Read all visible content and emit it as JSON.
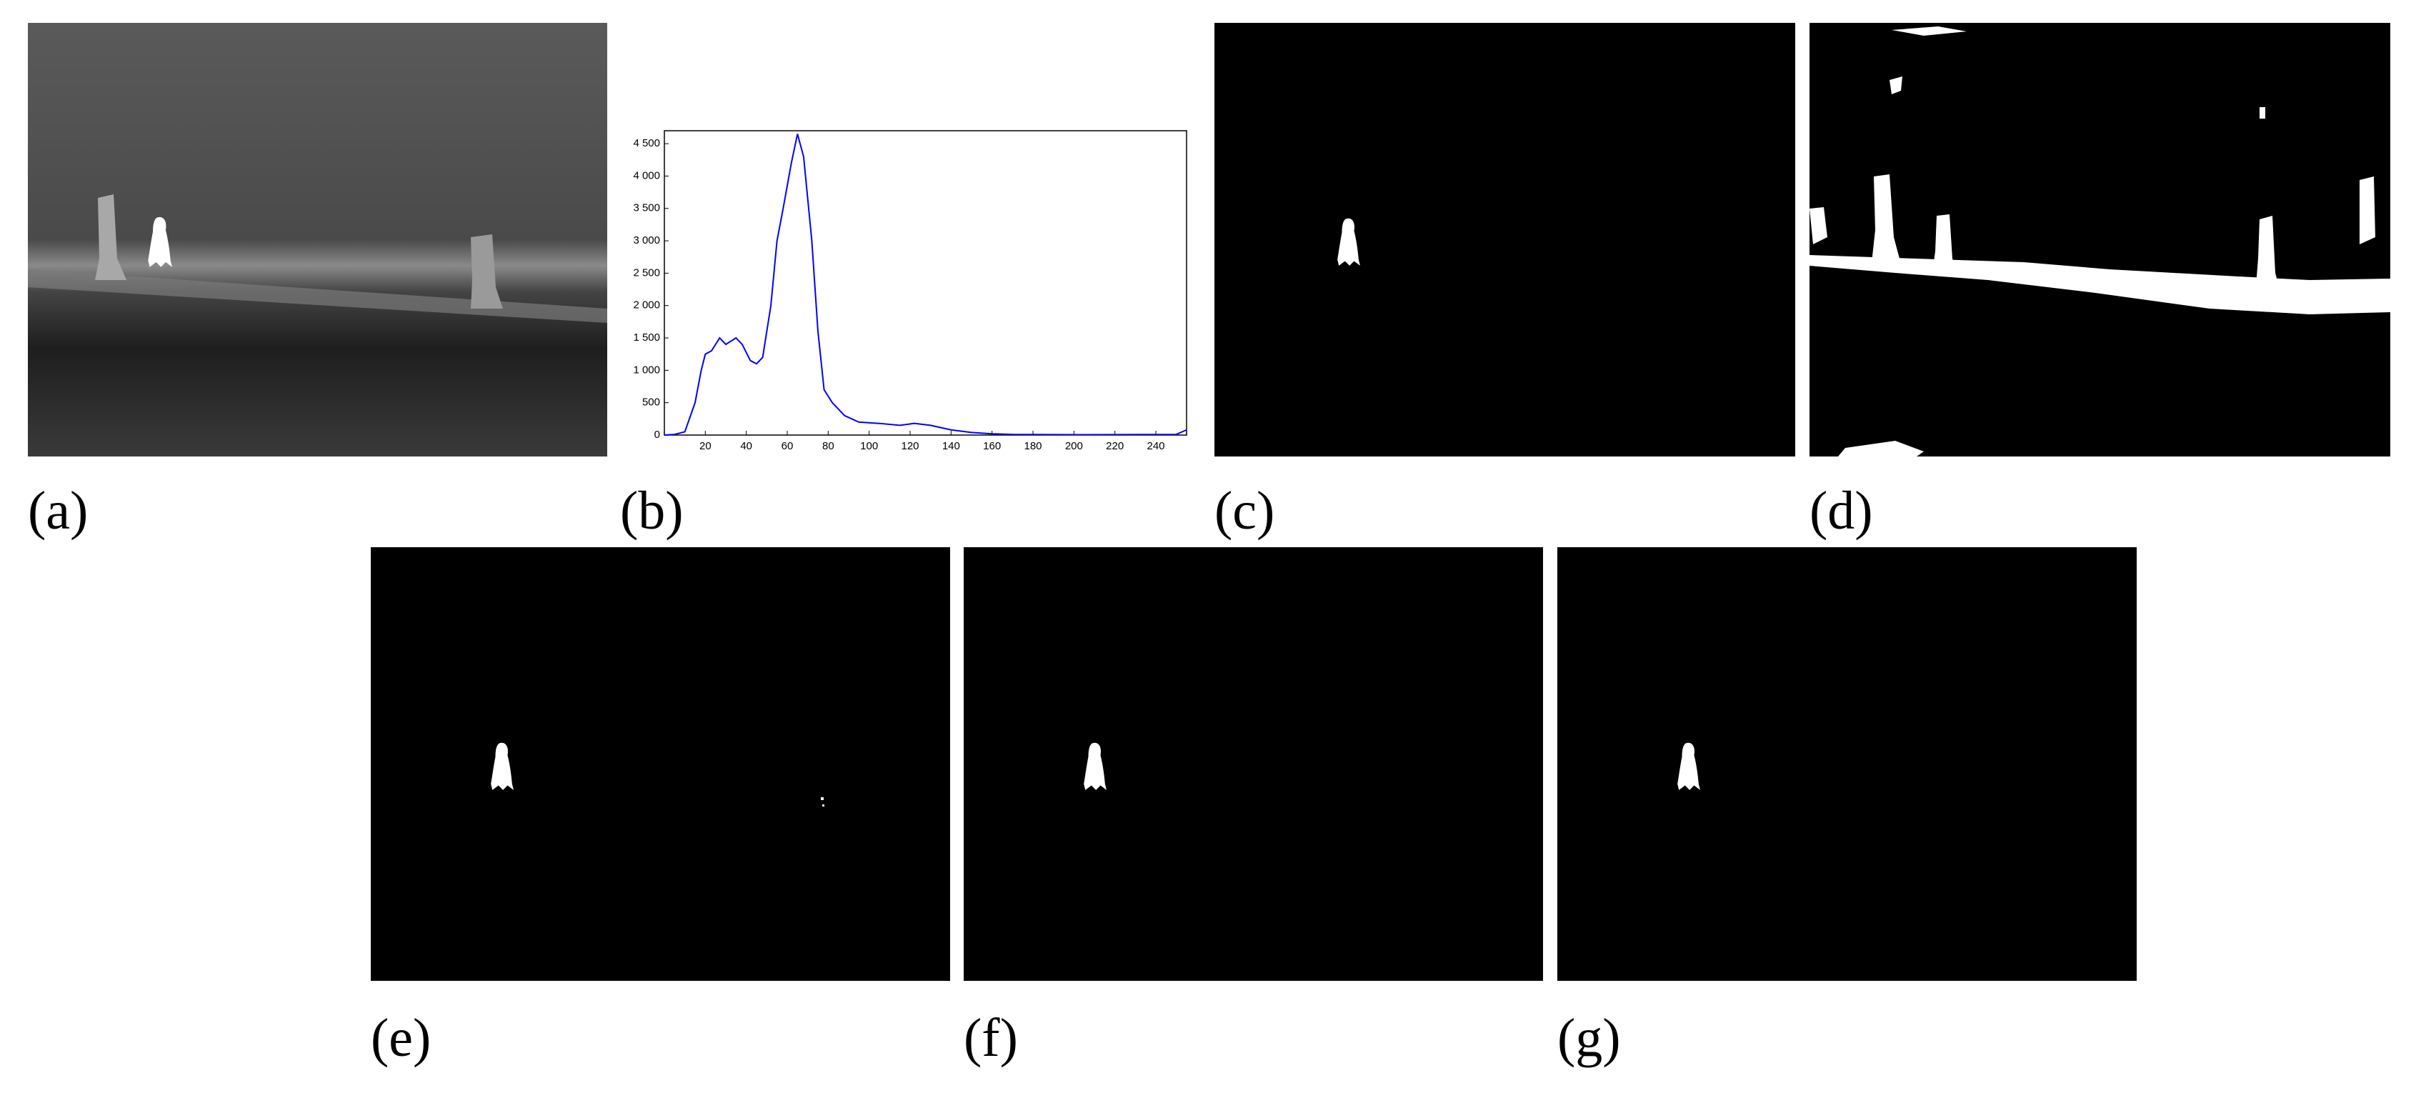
{
  "panel_labels": [
    "(a)",
    "(b)",
    "(c)",
    "(d)",
    "(e)",
    "(f)",
    "(g)"
  ],
  "chart_data": {
    "type": "line",
    "x": [
      0,
      5,
      10,
      15,
      18,
      20,
      23,
      27,
      30,
      35,
      38,
      42,
      45,
      48,
      52,
      55,
      58,
      62,
      65,
      68,
      72,
      75,
      78,
      82,
      88,
      95,
      105,
      115,
      122,
      130,
      140,
      150,
      160,
      170,
      200,
      250,
      255
    ],
    "values": [
      0,
      10,
      50,
      500,
      1000,
      1250,
      1300,
      1500,
      1400,
      1500,
      1400,
      1150,
      1100,
      1200,
      2000,
      3000,
      3500,
      4200,
      4650,
      4300,
      3000,
      1600,
      700,
      500,
      300,
      200,
      180,
      150,
      180,
      150,
      80,
      40,
      20,
      10,
      5,
      10,
      80
    ],
    "color": "#0000ff",
    "xlim": [
      0,
      255
    ],
    "ylim": [
      0,
      4700
    ],
    "xticks": [
      20,
      40,
      60,
      80,
      100,
      120,
      140,
      160,
      180,
      200,
      220,
      240
    ],
    "yticks": [
      0,
      500,
      {
        "value": 1000,
        "label": "1 000"
      },
      {
        "value": 1500,
        "label": "1 500"
      },
      {
        "value": 2000,
        "label": "2 000"
      },
      {
        "value": 2500,
        "label": "2 500"
      },
      {
        "value": 3000,
        "label": "3 000"
      },
      {
        "value": 3500,
        "label": "3 500"
      },
      {
        "value": 4000,
        "label": "4 000"
      },
      {
        "value": 4500,
        "label": "4 500"
      }
    ]
  }
}
